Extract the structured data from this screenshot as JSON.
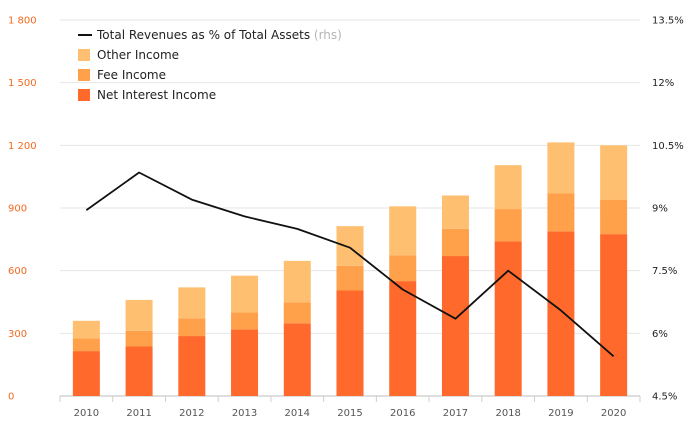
{
  "chart_data": {
    "type": "bar",
    "stacked": true,
    "categories": [
      "2010",
      "2011",
      "2012",
      "2013",
      "2014",
      "2015",
      "2016",
      "2017",
      "2018",
      "2019",
      "2020"
    ],
    "series": [
      {
        "name": "Net Interest Income",
        "color": "#ff6a2c",
        "values": [
          215,
          237,
          287,
          318,
          348,
          505,
          550,
          670,
          740,
          788,
          775
        ]
      },
      {
        "name": "Fee Income",
        "color": "#ffa04a",
        "values": [
          60,
          75,
          85,
          82,
          100,
          118,
          123,
          130,
          155,
          183,
          165
        ]
      },
      {
        "name": "Other Income",
        "color": "#ffbf70",
        "values": [
          85,
          148,
          148,
          176,
          199,
          190,
          235,
          160,
          210,
          243,
          260
        ]
      }
    ],
    "line": {
      "name": "Total Revenues as % of Total Assets",
      "suffix": "(rhs)",
      "color": "#111111",
      "values": [
        8.95,
        9.85,
        9.2,
        8.8,
        8.5,
        8.05,
        7.05,
        6.35,
        7.5,
        6.55,
        5.45
      ]
    },
    "y_left": {
      "ticks": [
        "0",
        "300",
        "600",
        "900",
        "1 200",
        "1 500",
        "1 800"
      ],
      "values": [
        0,
        300,
        600,
        900,
        1200,
        1500,
        1800
      ],
      "ylim": [
        0,
        1800
      ]
    },
    "y_right": {
      "ticks": [
        "4.5%",
        "6%",
        "7.5%",
        "9%",
        "10.5%",
        "12%",
        "13.5%"
      ],
      "values": [
        4.5,
        6,
        7.5,
        9,
        10.5,
        12,
        13.5
      ],
      "ylim": [
        4.5,
        13.5
      ]
    },
    "legend": {
      "position": "top-left",
      "order": [
        "line",
        "Other Income",
        "Fee Income",
        "Net Interest Income"
      ]
    },
    "grid": true,
    "title": "",
    "xlabel": "",
    "ylabel": ""
  }
}
